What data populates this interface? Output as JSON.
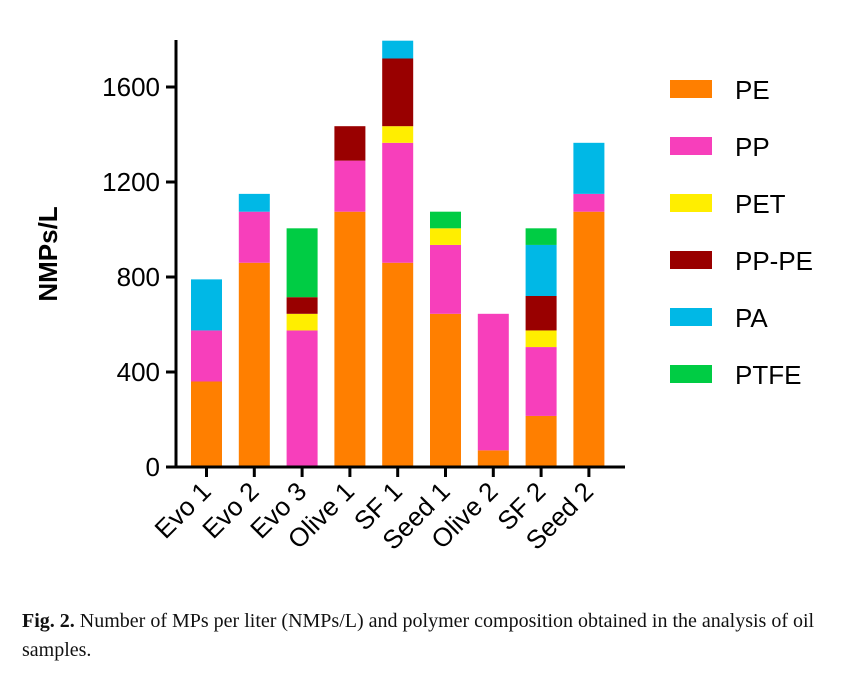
{
  "chart_data": {
    "type": "bar",
    "stacked": true,
    "ylabel": "NMPs/L",
    "xlabel": "",
    "ylim": [
      0,
      1800
    ],
    "yticks": [
      0,
      400,
      800,
      1200,
      1600
    ],
    "categories": [
      "Evo 1",
      "Evo 2",
      "Evo 3",
      "Olive 1",
      "SF 1",
      "Seed 1",
      "Olive 2",
      "SF 2",
      "Seed 2"
    ],
    "series": [
      {
        "name": "PE",
        "color": "#FF7F00",
        "values": [
          360,
          860,
          0,
          1075,
          860,
          645,
          70,
          215,
          1075
        ]
      },
      {
        "name": "PP",
        "color": "#F73FBB",
        "values": [
          215,
          215,
          575,
          215,
          505,
          290,
          575,
          290,
          75
        ]
      },
      {
        "name": "PET",
        "color": "#FFEE00",
        "values": [
          0,
          0,
          70,
          0,
          70,
          70,
          0,
          70,
          0
        ]
      },
      {
        "name": "PP-PE",
        "color": "#990000",
        "values": [
          0,
          0,
          70,
          145,
          285,
          0,
          0,
          145,
          0
        ]
      },
      {
        "name": "PA",
        "color": "#00B8E6",
        "values": [
          215,
          75,
          0,
          0,
          75,
          0,
          0,
          215,
          215
        ]
      },
      {
        "name": "PTFE",
        "color": "#00CC44",
        "values": [
          0,
          0,
          290,
          0,
          0,
          70,
          0,
          70,
          0
        ]
      }
    ],
    "legend_position": "right",
    "grid": false
  },
  "caption": {
    "label": "Fig. 2.",
    "text": "Number of MPs per liter (NMPs/L) and polymer composition obtained in the analysis of oil samples."
  }
}
